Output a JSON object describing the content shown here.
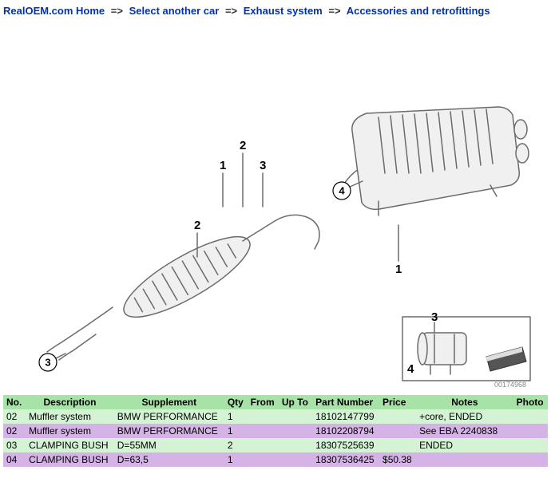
{
  "breadcrumb": {
    "items": [
      {
        "label": "RealOEM.com Home"
      },
      {
        "label": "Select another car"
      },
      {
        "label": "Exhaust system"
      },
      {
        "label": "Accessories and retrofittings"
      }
    ],
    "separator": "=>"
  },
  "diagram": {
    "image_id": "00174968",
    "callouts": {
      "c3_bottomleft": "3",
      "c2_midleft": "2",
      "c4_right": "4",
      "n1_top": "1",
      "n2_top": "2",
      "n3_top": "3",
      "n1_right": "1",
      "inset_n3": "3",
      "inset_n4": "4"
    }
  },
  "table": {
    "headers": {
      "no": "No.",
      "description": "Description",
      "supplement": "Supplement",
      "qty": "Qty",
      "from": "From",
      "upto": "Up To",
      "partnumber": "Part Number",
      "price": "Price",
      "notes": "Notes",
      "photo": "Photo"
    },
    "rows": [
      {
        "no": "02",
        "description": "Muffler system",
        "supplement": "BMW PERFORMANCE",
        "qty": "1",
        "from": "",
        "upto": "",
        "partnumber": "18102147799",
        "price": "",
        "notes": "+core, ENDED",
        "photo": "",
        "rowclass": "row-green"
      },
      {
        "no": "02",
        "description": "Muffler system",
        "supplement": "BMW PERFORMANCE",
        "qty": "1",
        "from": "",
        "upto": "",
        "partnumber": "18102208794",
        "price": "",
        "notes": "See EBA 2240838",
        "photo": "",
        "rowclass": "row-violet"
      },
      {
        "no": "03",
        "description": "CLAMPING BUSH",
        "supplement": "D=55MM",
        "qty": "2",
        "from": "",
        "upto": "",
        "partnumber": "18307525639",
        "price": "",
        "notes": "ENDED",
        "photo": "",
        "rowclass": "row-green"
      },
      {
        "no": "04",
        "description": "CLAMPING BUSH",
        "supplement": "D=63,5",
        "qty": "1",
        "from": "",
        "upto": "",
        "partnumber": "18307536425",
        "price": "$50.38",
        "notes": "",
        "photo": "",
        "rowclass": "row-violet"
      }
    ]
  }
}
